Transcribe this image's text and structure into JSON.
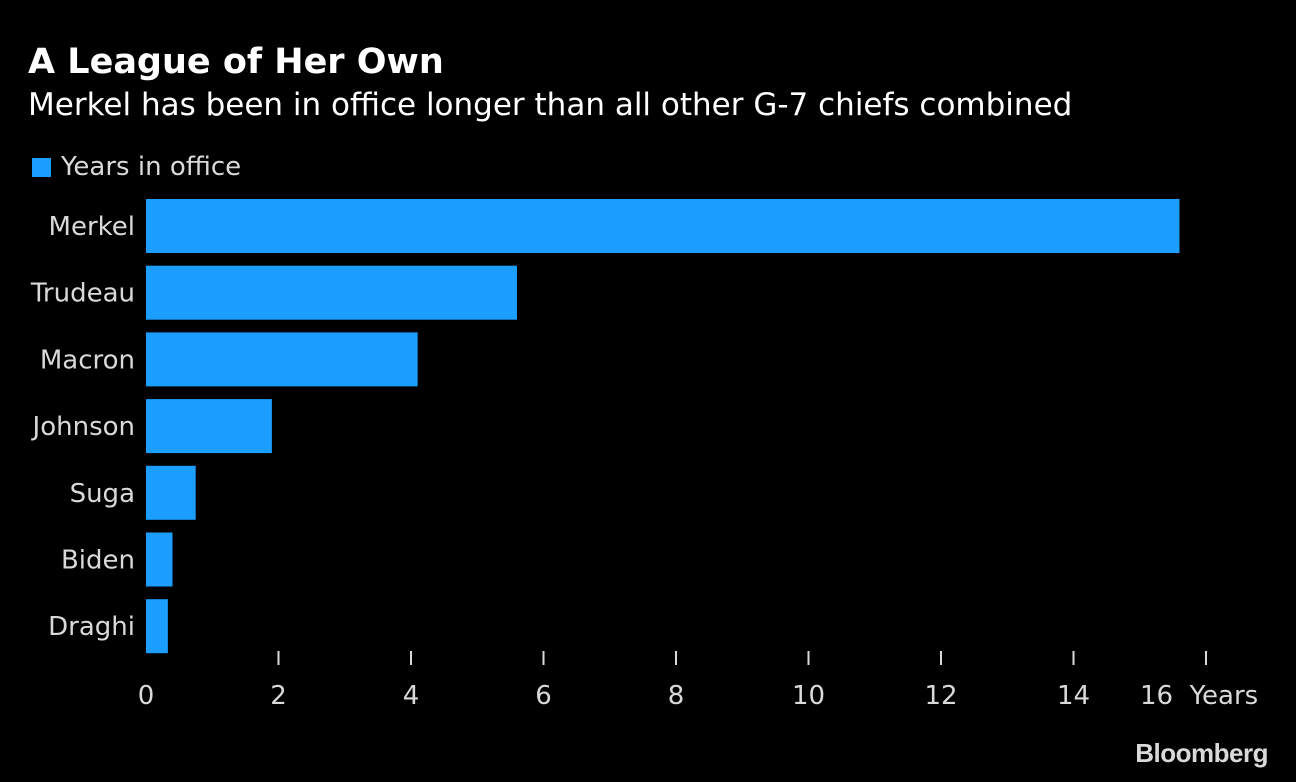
{
  "title": "A League of Her Own",
  "subtitle": "Merkel has been in office longer than all other G-7 chiefs combined",
  "brand": "Bloomberg",
  "colors": {
    "background": "#000000",
    "bar": "#1c9eff",
    "text": "#ffffff",
    "axis_text": "#d9d9d9"
  },
  "chart_data": {
    "type": "bar",
    "orientation": "horizontal",
    "categories": [
      "Merkel",
      "Trudeau",
      "Macron",
      "Johnson",
      "Suga",
      "Biden",
      "Draghi"
    ],
    "series": [
      {
        "name": "Years in office",
        "values": [
          15.6,
          5.6,
          4.1,
          1.9,
          0.75,
          0.4,
          0.33
        ]
      }
    ],
    "xlim": [
      0,
      16
    ],
    "xticks": [
      0,
      2,
      4,
      6,
      8,
      10,
      12,
      14,
      16
    ],
    "xunit": "Years",
    "legend_position": "top-left",
    "grid": false
  }
}
